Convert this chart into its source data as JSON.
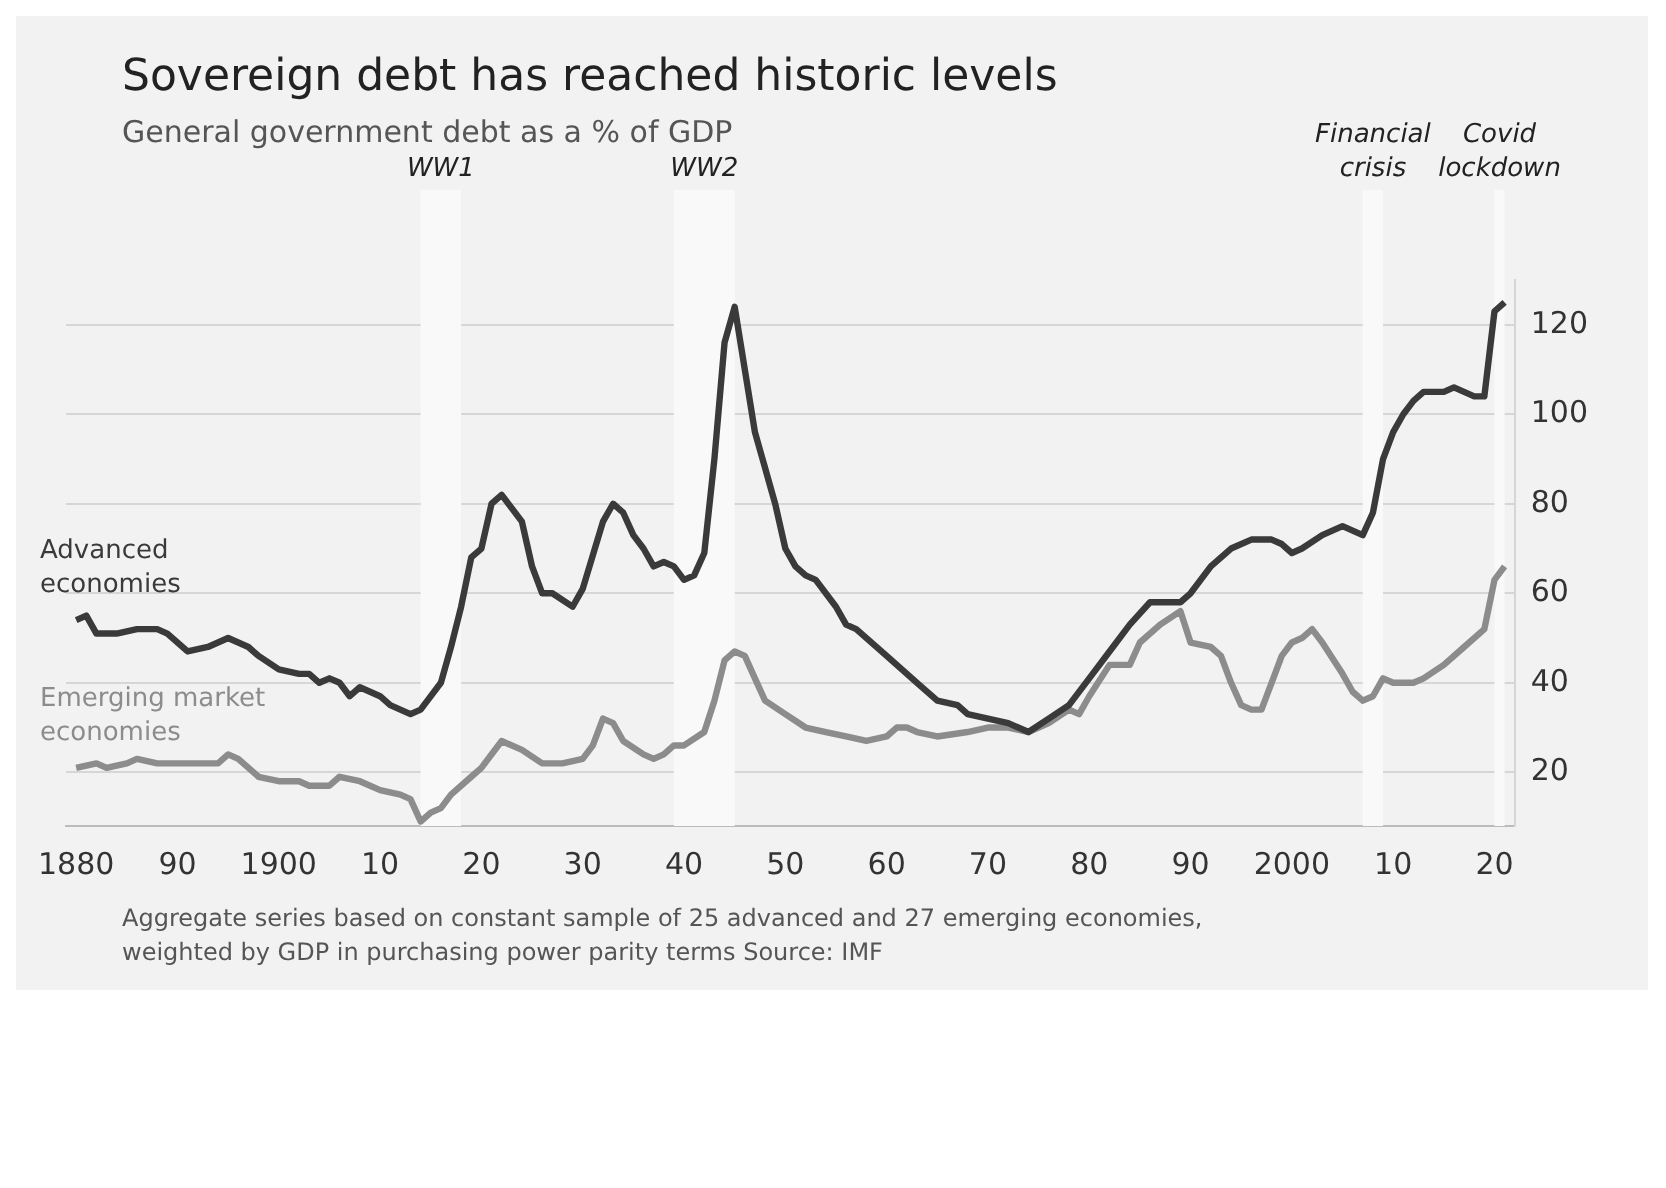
{
  "chart_data": {
    "type": "line",
    "title": "Sovereign debt has reached historic levels",
    "subtitle": "General government debt as a % of GDP",
    "annotations": [
      "Aggregate series based on constant sample of 25 advanced and 27 emerging economies, weighted by GDP in purchasing power parity terms",
      "Source: IMF"
    ],
    "xlim": [
      1879,
      2022
    ],
    "xticks": [
      {
        "value": 1880,
        "label": "1880"
      },
      {
        "value": 1890,
        "label": "90"
      },
      {
        "value": 1900,
        "label": "1900"
      },
      {
        "value": 1910,
        "label": "10"
      },
      {
        "value": 1920,
        "label": "20"
      },
      {
        "value": 1930,
        "label": "30"
      },
      {
        "value": 1940,
        "label": "40"
      },
      {
        "value": 1950,
        "label": "50"
      },
      {
        "value": 1960,
        "label": "60"
      },
      {
        "value": 1970,
        "label": "70"
      },
      {
        "value": 1980,
        "label": "80"
      },
      {
        "value": 1990,
        "label": "90"
      },
      {
        "value": 2000,
        "label": "2000"
      },
      {
        "value": 2010,
        "label": "10"
      },
      {
        "value": 2020,
        "label": "20"
      }
    ],
    "ylim": [
      8,
      130
    ],
    "yticks": [
      20,
      40,
      60,
      80,
      100,
      120
    ],
    "grid": "y",
    "legend": false,
    "bands": [
      {
        "axis": "x",
        "from": 1914,
        "to": 1918,
        "label": "WW1",
        "color": "#f9f9f9"
      },
      {
        "axis": "x",
        "from": 1939,
        "to": 1945,
        "label": "WW2",
        "color": "#f9f9f9"
      },
      {
        "axis": "x",
        "from": 2007,
        "to": 2009,
        "label": "Financial crisis",
        "color": "#f9f9f9"
      },
      {
        "axis": "x",
        "from": 2020,
        "to": 2021,
        "label": "Covid lockdown",
        "color": "#f9f9f9"
      }
    ],
    "series": [
      {
        "name": "Advanced economies",
        "color": "#3a3a3a",
        "x": [
          1880,
          1881,
          1882,
          1884,
          1886,
          1888,
          1889,
          1891,
          1893,
          1895,
          1896,
          1897,
          1898,
          1900,
          1902,
          1903,
          1904,
          1905,
          1906,
          1907,
          1908,
          1910,
          1911,
          1913,
          1914,
          1916,
          1917,
          1918,
          1919,
          1920,
          1921,
          1922,
          1924,
          1925,
          1926,
          1927,
          1929,
          1930,
          1932,
          1933,
          1934,
          1935,
          1936,
          1937,
          1938,
          1939,
          1940,
          1941,
          1942,
          1943,
          1944,
          1945,
          1946,
          1947,
          1948,
          1949,
          1950,
          1951,
          1952,
          1953,
          1955,
          1956,
          1957,
          1960,
          1963,
          1965,
          1967,
          1968,
          1970,
          1972,
          1974,
          1976,
          1978,
          1980,
          1982,
          1984,
          1986,
          1987,
          1989,
          1990,
          1992,
          1994,
          1996,
          1998,
          1999,
          2000,
          2001,
          2003,
          2005,
          2007,
          2008,
          2009,
          2010,
          2011,
          2012,
          2013,
          2014,
          2015,
          2016,
          2017,
          2018,
          2019,
          2020,
          2021
        ],
        "values": [
          54,
          55,
          51,
          51,
          52,
          52,
          51,
          47,
          48,
          50,
          49,
          48,
          46,
          43,
          42,
          42,
          40,
          41,
          40,
          37,
          39,
          37,
          35,
          33,
          34,
          40,
          48,
          57,
          68,
          70,
          80,
          82,
          76,
          66,
          60,
          60,
          57,
          61,
          76,
          80,
          78,
          73,
          70,
          66,
          67,
          66,
          63,
          64,
          69,
          90,
          116,
          124,
          110,
          96,
          88,
          80,
          70,
          66,
          64,
          63,
          57,
          53,
          52,
          46,
          40,
          36,
          35,
          33,
          32,
          31,
          29,
          32,
          35,
          41,
          47,
          53,
          58,
          58,
          58,
          60,
          66,
          70,
          72,
          72,
          71,
          69,
          70,
          73,
          75,
          73,
          78,
          90,
          96,
          100,
          103,
          105,
          105,
          105,
          106,
          105,
          104,
          104,
          123,
          125
        ]
      },
      {
        "name": "Emerging market economies",
        "color": "#8c8c8c",
        "x": [
          1880,
          1882,
          1883,
          1885,
          1886,
          1888,
          1890,
          1892,
          1894,
          1895,
          1896,
          1898,
          1900,
          1902,
          1903,
          1905,
          1906,
          1908,
          1910,
          1912,
          1913,
          1914,
          1915,
          1916,
          1917,
          1919,
          1920,
          1922,
          1924,
          1926,
          1928,
          1930,
          1931,
          1932,
          1933,
          1934,
          1936,
          1937,
          1938,
          1939,
          1940,
          1942,
          1943,
          1944,
          1945,
          1946,
          1947,
          1948,
          1950,
          1952,
          1954,
          1956,
          1958,
          1960,
          1961,
          1962,
          1963,
          1965,
          1968,
          1970,
          1972,
          1974,
          1976,
          1978,
          1979,
          1980,
          1982,
          1984,
          1985,
          1987,
          1989,
          1990,
          1992,
          1993,
          1994,
          1995,
          1996,
          1997,
          1998,
          1999,
          2000,
          2001,
          2002,
          2003,
          2005,
          2006,
          2007,
          2008,
          2009,
          2010,
          2012,
          2013,
          2015,
          2017,
          2019,
          2020,
          2021
        ],
        "values": [
          21,
          22,
          21,
          22,
          23,
          22,
          22,
          22,
          22,
          24,
          23,
          19,
          18,
          18,
          17,
          17,
          19,
          18,
          16,
          15,
          14,
          9,
          11,
          12,
          15,
          19,
          21,
          27,
          25,
          22,
          22,
          23,
          26,
          32,
          31,
          27,
          24,
          23,
          24,
          26,
          26,
          29,
          36,
          45,
          47,
          46,
          41,
          36,
          33,
          30,
          29,
          28,
          27,
          28,
          30,
          30,
          29,
          28,
          29,
          30,
          30,
          29,
          31,
          34,
          33,
          37,
          44,
          44,
          49,
          53,
          56,
          49,
          48,
          46,
          40,
          35,
          34,
          34,
          40,
          46,
          49,
          50,
          52,
          49,
          42,
          38,
          36,
          37,
          41,
          40,
          40,
          41,
          44,
          48,
          52,
          63,
          66
        ]
      }
    ]
  }
}
